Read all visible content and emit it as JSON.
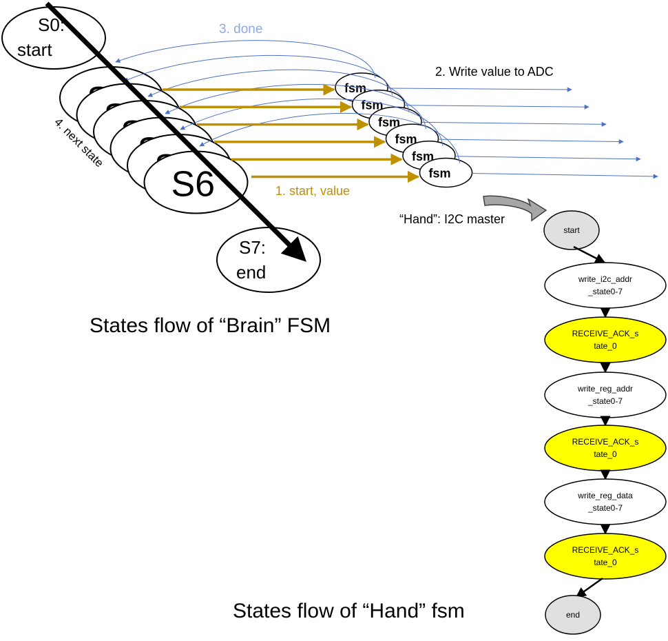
{
  "colors": {
    "done_arrow": "#4a72c4",
    "start_arrow": "#bf9000",
    "fsm_node_fill": "#ffffff",
    "hand_gray": "#e0e0e0",
    "hand_yellow": "#ffff00",
    "black": "#000000"
  },
  "brain": {
    "title": "States flow of “Brain” FSM",
    "s0_line1": "S0:",
    "s0_line2": "start",
    "s7_line1": "S7:",
    "s7_line2": "end",
    "stack_labels": [
      "S1",
      "S2",
      "S3",
      "S4",
      "S5",
      "S6"
    ],
    "next_state_label": "4. next state"
  },
  "fsm": {
    "node_label": "fsm",
    "count": 6,
    "done_label": "3. done",
    "start_label": "1. start, value",
    "adc_label": "2. Write value to ADC"
  },
  "hand": {
    "title": "States flow of “Hand” fsm",
    "caption": "“Hand”: I2C master",
    "nodes": [
      {
        "lines": [
          "start"
        ],
        "type": "terminal"
      },
      {
        "lines": [
          "write_i2c_addr",
          "_state0-7"
        ],
        "type": "normal"
      },
      {
        "lines": [
          "RECEIVE_ACK_s",
          "tate_0"
        ],
        "type": "ack"
      },
      {
        "lines": [
          "write_reg_addr",
          "_state0-7"
        ],
        "type": "normal"
      },
      {
        "lines": [
          "RECEIVE_ACK_s",
          "tate_0"
        ],
        "type": "ack"
      },
      {
        "lines": [
          "write_reg_data",
          "_state0-7"
        ],
        "type": "normal"
      },
      {
        "lines": [
          "RECEIVE_ACK_s",
          "tate_0"
        ],
        "type": "ack"
      },
      {
        "lines": [
          "end"
        ],
        "type": "terminal"
      }
    ]
  }
}
